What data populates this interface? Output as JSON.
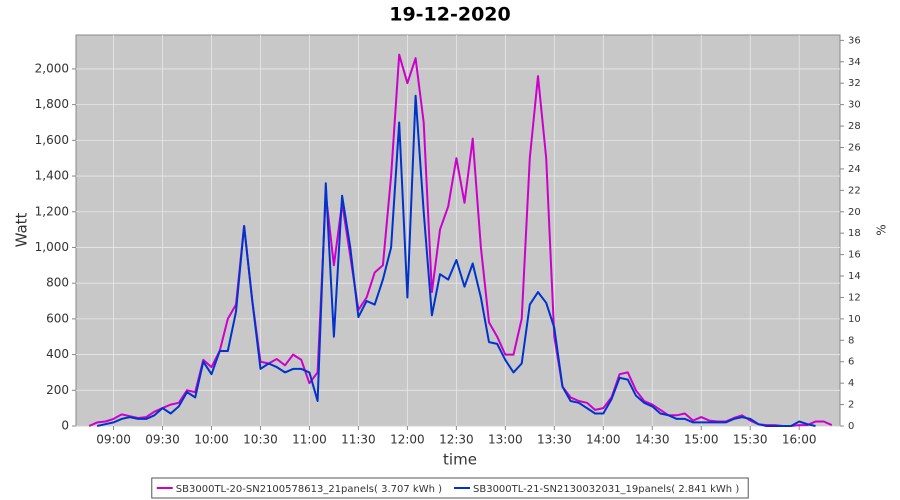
{
  "chart_data": {
    "type": "line",
    "title": "19-12-2020",
    "xlabel": "time",
    "ylabel": "Watt",
    "y2label": "%",
    "x": [
      "08:45",
      "08:50",
      "08:55",
      "09:00",
      "09:05",
      "09:10",
      "09:15",
      "09:20",
      "09:25",
      "09:30",
      "09:35",
      "09:40",
      "09:45",
      "09:50",
      "09:55",
      "10:00",
      "10:05",
      "10:10",
      "10:15",
      "10:20",
      "10:25",
      "10:30",
      "10:35",
      "10:40",
      "10:45",
      "10:50",
      "10:55",
      "11:00",
      "11:05",
      "11:10",
      "11:15",
      "11:20",
      "11:25",
      "11:30",
      "11:35",
      "11:40",
      "11:45",
      "11:50",
      "11:55",
      "12:00",
      "12:05",
      "12:10",
      "12:15",
      "12:20",
      "12:25",
      "12:30",
      "12:35",
      "12:40",
      "12:45",
      "12:50",
      "12:55",
      "13:00",
      "13:05",
      "13:10",
      "13:15",
      "13:20",
      "13:25",
      "13:30",
      "13:35",
      "13:40",
      "13:45",
      "13:50",
      "13:55",
      "14:00",
      "14:05",
      "14:10",
      "14:15",
      "14:20",
      "14:25",
      "14:30",
      "14:35",
      "14:40",
      "14:45",
      "14:50",
      "14:55",
      "15:00",
      "15:05",
      "15:10",
      "15:15",
      "15:20",
      "15:25",
      "15:30",
      "15:35",
      "15:40",
      "15:45",
      "15:50",
      "15:55",
      "16:00",
      "16:05",
      "16:10",
      "16:15",
      "16:20"
    ],
    "series": [
      {
        "name": "SB3000TL-20-SN2100578613_21panels( 3.707 kWh )",
        "color": "#cc00cc",
        "values": [
          0,
          20,
          25,
          40,
          65,
          55,
          45,
          50,
          80,
          100,
          120,
          130,
          200,
          190,
          370,
          330,
          420,
          600,
          680,
          1120,
          700,
          360,
          350,
          375,
          340,
          400,
          370,
          240,
          300,
          1300,
          900,
          1250,
          950,
          650,
          720,
          860,
          900,
          1400,
          2080,
          1920,
          2060,
          1700,
          750,
          1100,
          1230,
          1500,
          1250,
          1610,
          1000,
          580,
          500,
          400,
          400,
          600,
          1500,
          1960,
          1500,
          500,
          220,
          160,
          140,
          130,
          90,
          100,
          160,
          290,
          300,
          200,
          140,
          120,
          90,
          60,
          60,
          70,
          30,
          50,
          30,
          25,
          25,
          45,
          60,
          30,
          10,
          5,
          5,
          0,
          0,
          5,
          5,
          25,
          25,
          5
        ]
      },
      {
        "name": "SB3000TL-21-SN2130032031_19panels( 2.841 kWh )",
        "color": "#0033cc",
        "values": [
          null,
          0,
          10,
          20,
          40,
          50,
          40,
          40,
          60,
          100,
          70,
          110,
          190,
          160,
          360,
          290,
          420,
          420,
          640,
          1120,
          700,
          320,
          350,
          330,
          300,
          320,
          320,
          300,
          140,
          1360,
          500,
          1290,
          1000,
          610,
          700,
          680,
          820,
          1000,
          1700,
          720,
          1850,
          1200,
          620,
          850,
          820,
          930,
          780,
          910,
          720,
          470,
          460,
          370,
          300,
          350,
          680,
          750,
          690,
          550,
          220,
          140,
          130,
          100,
          70,
          70,
          150,
          270,
          260,
          170,
          130,
          110,
          70,
          60,
          40,
          40,
          20,
          20,
          20,
          20,
          20,
          40,
          50,
          40,
          10,
          0,
          0,
          0,
          0,
          25,
          10,
          0,
          null,
          null
        ]
      }
    ],
    "xlim": [
      "08:37",
      "16:25"
    ],
    "xticks": [
      "09:00",
      "09:30",
      "10:00",
      "10:30",
      "11:00",
      "11:30",
      "12:00",
      "12:30",
      "13:00",
      "13:30",
      "14:00",
      "14:30",
      "15:00",
      "15:30",
      "16:00"
    ],
    "ylim": [
      0,
      2190
    ],
    "yticks": [
      0,
      200,
      400,
      600,
      800,
      {
        "value": 1000,
        "label": "1,000"
      },
      {
        "value": 1200,
        "label": "1,200"
      },
      {
        "value": 1400,
        "label": "1,400"
      },
      {
        "value": 1600,
        "label": "1,600"
      },
      {
        "value": 1800,
        "label": "1,800"
      },
      {
        "value": 2000,
        "label": "2,000"
      }
    ],
    "y2lim": [
      0,
      36.5
    ],
    "y2ticks": [
      0,
      2,
      4,
      6,
      8,
      10,
      12,
      14,
      16,
      18,
      20,
      22,
      24,
      26,
      28,
      30,
      32,
      34,
      36
    ],
    "grid": true,
    "plot_background": "#c8c8c8",
    "legend": "bottom"
  }
}
